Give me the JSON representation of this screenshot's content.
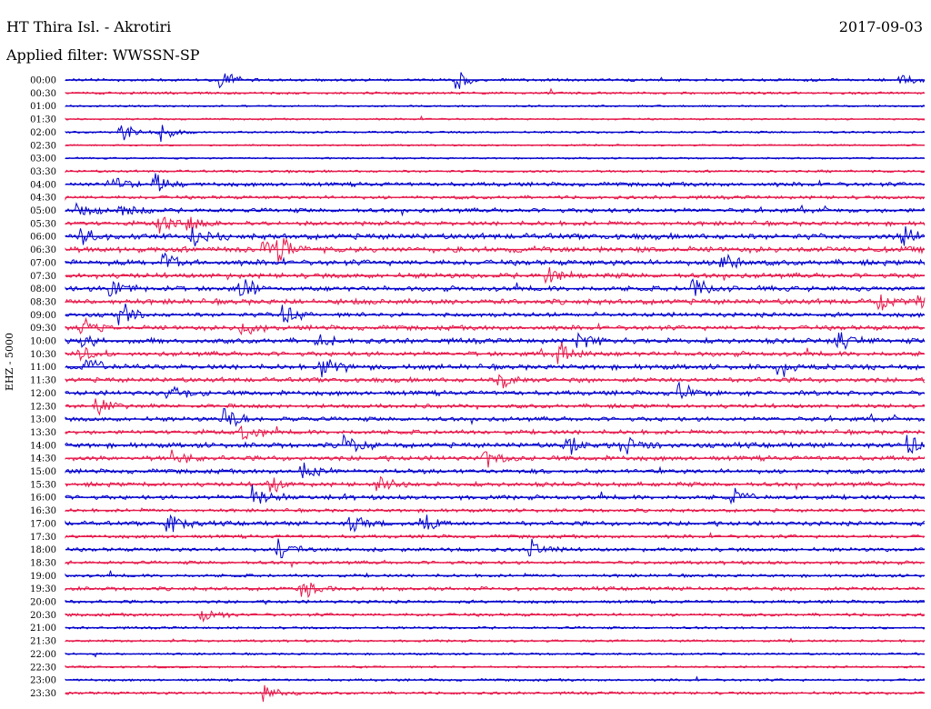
{
  "header": {
    "station": "HT Thira Isl. - Akrotiri",
    "date": "2017-09-03",
    "filter_label": "Applied filter:",
    "filter_name": "WWSSN-SP",
    "channel_label": "EHZ - 5000"
  },
  "colors": {
    "even_row": "#0000cc",
    "odd_row": "#e6194b"
  },
  "chart_data": {
    "type": "line",
    "title": "HT Thira Isl. - Akrotiri",
    "ylabel": "EHZ - 5000",
    "tick_labels": [
      "00:00",
      "00:30",
      "01:00",
      "01:30",
      "02:00",
      "02:30",
      "03:00",
      "03:30",
      "04:00",
      "04:30",
      "05:00",
      "05:30",
      "06:00",
      "06:30",
      "07:00",
      "07:30",
      "08:00",
      "08:30",
      "09:00",
      "09:30",
      "10:00",
      "10:30",
      "11:00",
      "11:30",
      "12:00",
      "12:30",
      "13:00",
      "13:30",
      "14:00",
      "14:30",
      "15:00",
      "15:30",
      "16:00",
      "16:30",
      "17:00",
      "17:30",
      "18:00",
      "18:30",
      "19:00",
      "19:30",
      "20:00",
      "20:30",
      "21:00",
      "21:30",
      "22:00",
      "22:30",
      "23:00",
      "23:30"
    ],
    "activity": [
      0.25,
      0.2,
      0.1,
      0.1,
      0.15,
      0.1,
      0.1,
      0.2,
      0.45,
      0.35,
      0.5,
      0.5,
      0.7,
      0.7,
      0.65,
      0.6,
      0.6,
      0.65,
      0.5,
      0.55,
      0.6,
      0.55,
      0.6,
      0.55,
      0.55,
      0.45,
      0.5,
      0.5,
      0.6,
      0.55,
      0.5,
      0.5,
      0.5,
      0.35,
      0.5,
      0.35,
      0.4,
      0.35,
      0.3,
      0.4,
      0.3,
      0.3,
      0.2,
      0.2,
      0.15,
      0.15,
      0.2,
      0.25
    ],
    "events_min": [
      [
        33,
        82,
        175
      ],
      [],
      [],
      [],
      [
        12,
        20
      ],
      [],
      [],
      [],
      [
        9,
        19
      ],
      [],
      [
        3,
        12
      ],
      [
        20,
        26
      ],
      [
        4,
        27,
        176
      ],
      [
        42,
        45
      ],
      [
        21,
        138
      ],
      [
        101
      ],
      [
        10,
        37,
        132
      ],
      [
        171,
        179
      ],
      [
        12,
        46
      ],
      [
        3,
        37
      ],
      [
        4,
        53,
        108,
        162
      ],
      [
        3,
        104
      ],
      [
        5,
        54,
        150
      ],
      [
        91
      ],
      [
        22,
        129
      ],
      [
        7
      ],
      [
        34
      ],
      [
        37
      ],
      [
        59,
        105,
        117,
        177
      ],
      [
        23,
        88
      ],
      [
        50
      ],
      [
        43,
        66
      ],
      [
        40,
        140
      ],
      [],
      [
        22,
        60,
        75
      ],
      [],
      [
        45,
        98
      ],
      [],
      [],
      [
        50
      ],
      [],
      [
        29
      ],
      [],
      [],
      [],
      [],
      [],
      [
        42
      ]
    ]
  }
}
